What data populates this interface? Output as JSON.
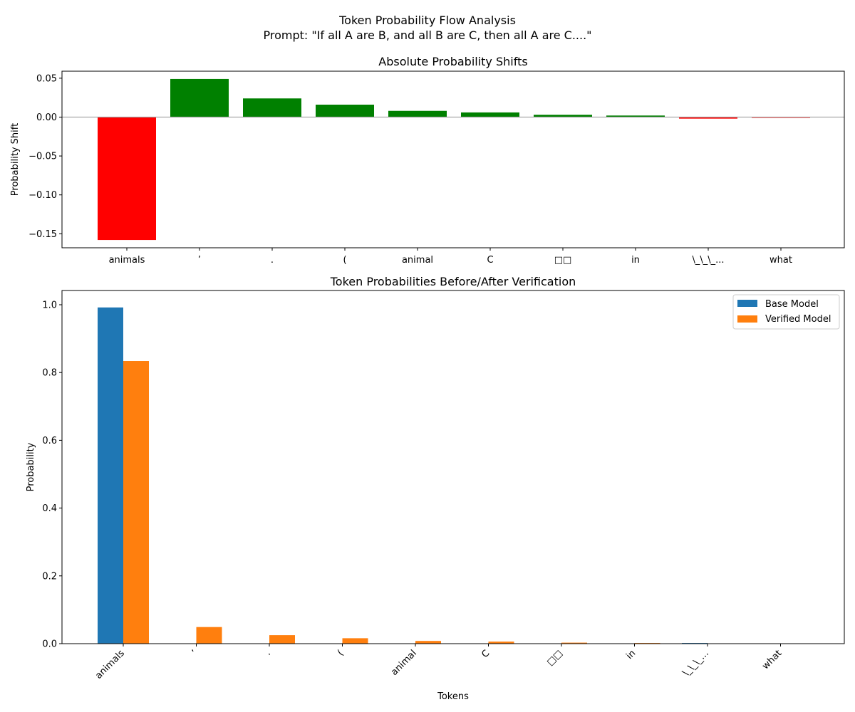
{
  "figure": {
    "title_line1": "Token Probability Flow Analysis",
    "title_line2": "Prompt: \"If all A are B, and all B are C, then all A are C....\""
  },
  "colors": {
    "positive": "#008000",
    "negative": "#ff0000",
    "base": "#1f77b4",
    "verified": "#ff7f0e",
    "zero_line": "#a0a0a0"
  },
  "chart_data": [
    {
      "type": "bar",
      "title": "Absolute Probability Shifts",
      "ylabel": "Probability Shift",
      "xlabel": "",
      "categories": [
        "animals",
        "’",
        ".",
        "(",
        "animal",
        "C",
        "□□",
        "in",
        "\\_\\_\\_...",
        "what"
      ],
      "values": [
        -0.158,
        0.049,
        0.024,
        0.016,
        0.008,
        0.006,
        0.003,
        0.002,
        -0.002,
        -0.001
      ],
      "ylim": [
        -0.168,
        0.059
      ],
      "yticks": [
        "0.05",
        "0.00",
        "−0.05",
        "−0.10",
        "−0.15"
      ],
      "ytick_values": [
        0.05,
        0.0,
        -0.05,
        -0.1,
        -0.15
      ],
      "grid": false
    },
    {
      "type": "bar",
      "title": "Token Probabilities Before/After Verification",
      "ylabel": "Probability",
      "xlabel": "Tokens",
      "categories": [
        "animals",
        "’",
        ".",
        "(",
        "animal",
        "C",
        "□□",
        "in",
        "\\_\\_\\_...",
        "what"
      ],
      "series": [
        {
          "name": "Base Model",
          "values": [
            0.992,
            0.0,
            0.0,
            0.0,
            0.0,
            0.0,
            0.0,
            0.0,
            0.002,
            0.0
          ]
        },
        {
          "name": "Verified Model",
          "values": [
            0.834,
            0.049,
            0.025,
            0.016,
            0.008,
            0.006,
            0.003,
            0.002,
            0.0,
            0.0
          ]
        }
      ],
      "ylim": [
        0,
        1.042
      ],
      "yticks": [
        "0.0",
        "0.2",
        "0.4",
        "0.6",
        "0.8",
        "1.0"
      ],
      "ytick_values": [
        0,
        0.2,
        0.4,
        0.6,
        0.8,
        1.0
      ],
      "legend_position": "top-right",
      "grid": false
    }
  ]
}
